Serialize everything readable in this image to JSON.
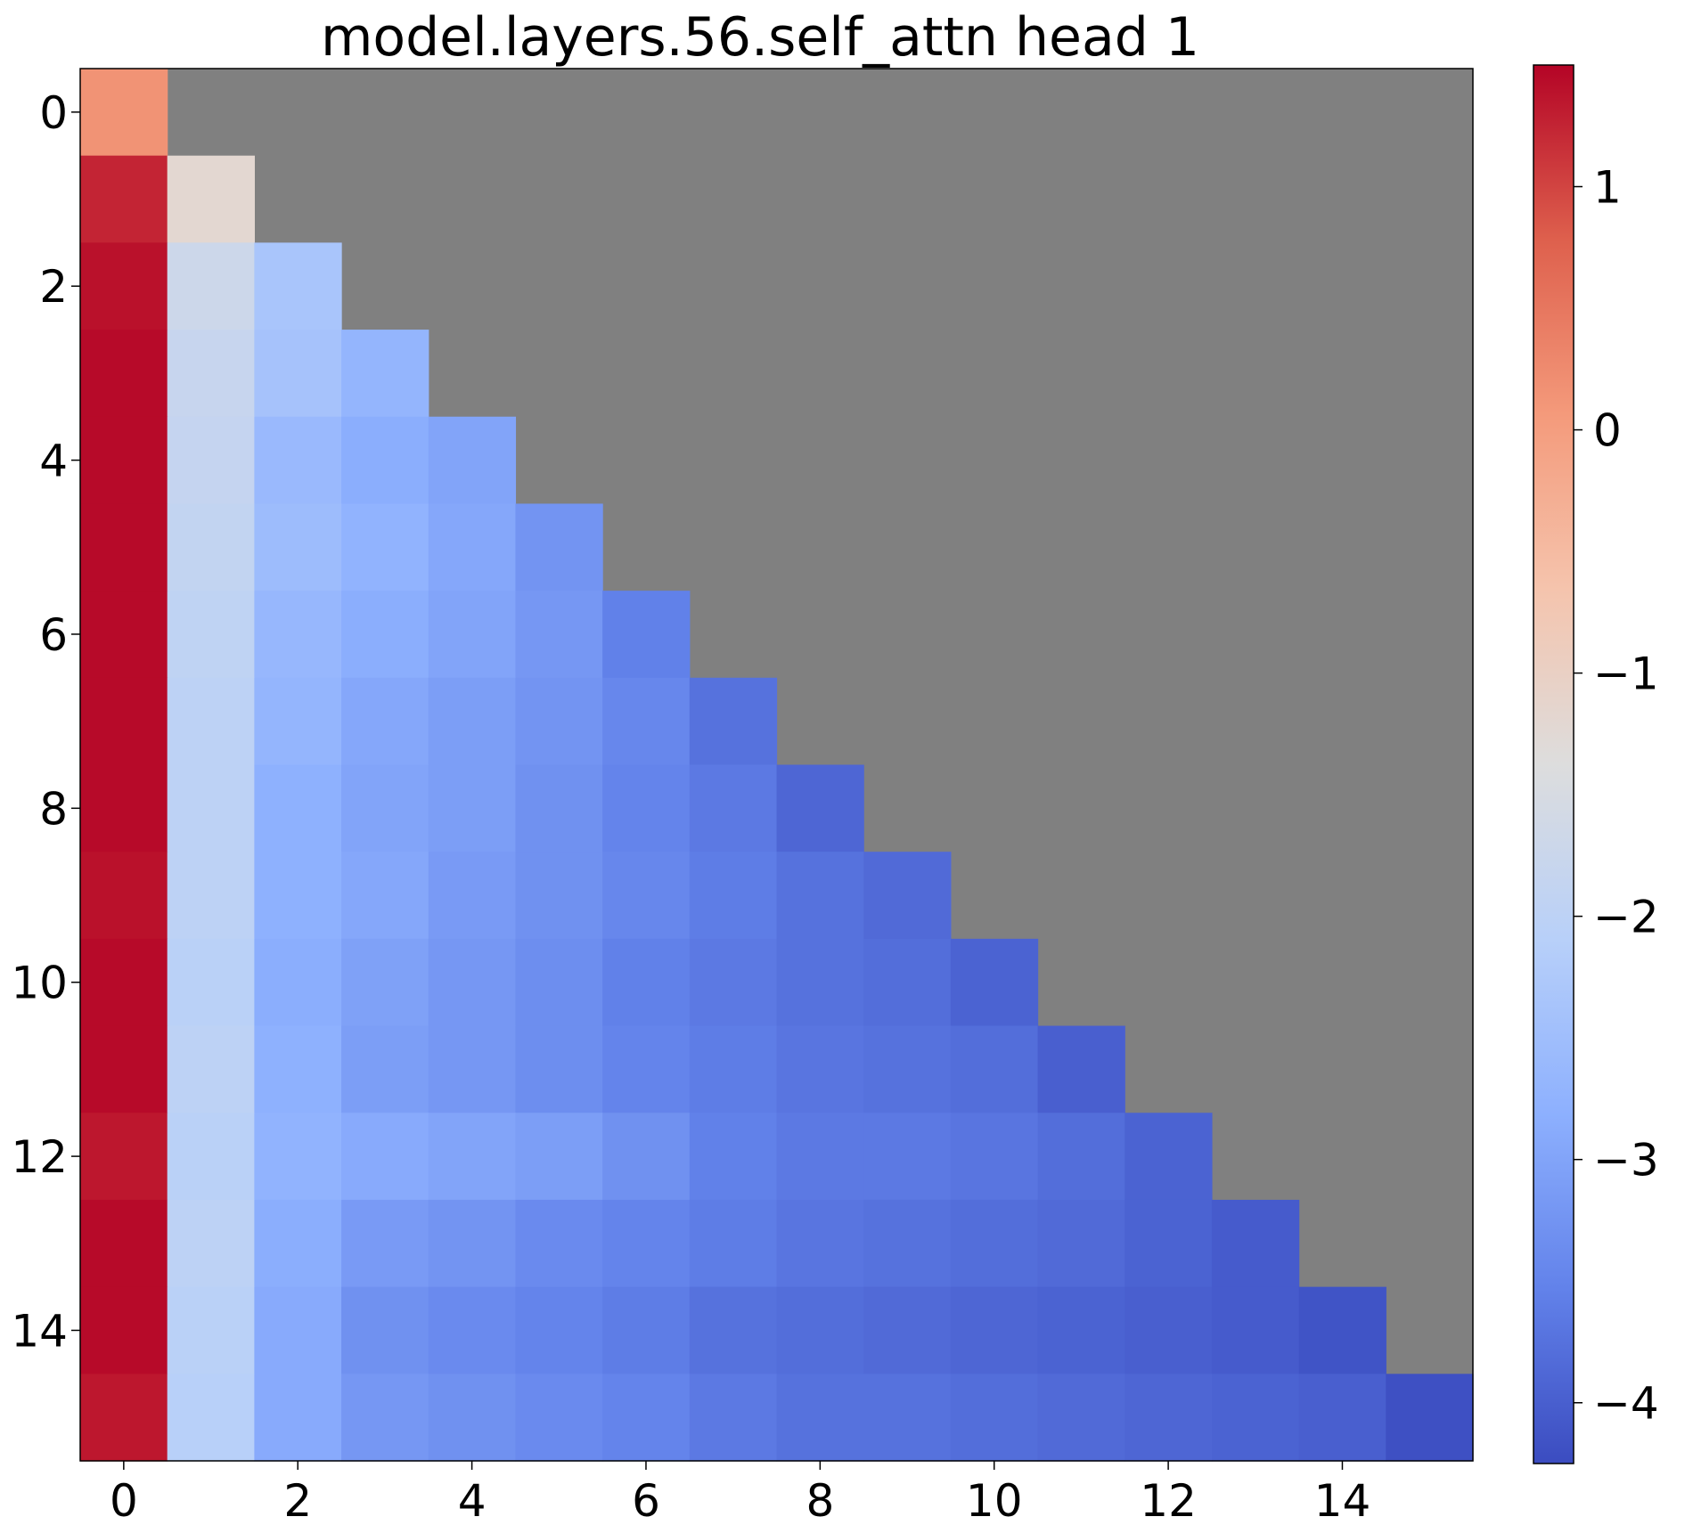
{
  "chart_data": {
    "type": "heatmap",
    "title": "model.layers.56.self_attn head 1",
    "xlabel": "",
    "ylabel": "",
    "colormap": "coolwarm",
    "masked_color": "#808080",
    "vmin": -4.25,
    "vmax": 1.5,
    "xlim": [
      -0.5,
      15.5
    ],
    "ylim": [
      15.5,
      -0.5
    ],
    "x_ticks": [
      0,
      2,
      4,
      6,
      8,
      10,
      12,
      14
    ],
    "y_ticks": [
      0,
      2,
      4,
      6,
      8,
      10,
      12,
      14
    ],
    "colorbar": {
      "ticks": [
        1,
        0,
        -1,
        -2,
        -3,
        -4
      ],
      "tick_labels": [
        "1",
        "0",
        "−1",
        "−2",
        "−3",
        "−4"
      ]
    },
    "masked": "upper triangle (column > row)",
    "values": [
      [
        0.15
      ],
      [
        1.25,
        -1.2
      ],
      [
        1.4,
        -1.7,
        -2.35
      ],
      [
        1.45,
        -1.8,
        -2.4,
        -2.7
      ],
      [
        1.45,
        -1.85,
        -2.6,
        -2.85,
        -3.0
      ],
      [
        1.45,
        -1.9,
        -2.55,
        -2.75,
        -2.95,
        -3.25
      ],
      [
        1.45,
        -1.95,
        -2.65,
        -2.85,
        -3.0,
        -3.2,
        -3.55
      ],
      [
        1.45,
        -2.0,
        -2.7,
        -2.95,
        -3.1,
        -3.25,
        -3.45,
        -3.75
      ],
      [
        1.45,
        -2.0,
        -2.8,
        -3.0,
        -3.1,
        -3.3,
        -3.5,
        -3.65,
        -3.9
      ],
      [
        1.4,
        -2.0,
        -2.8,
        -2.95,
        -3.15,
        -3.3,
        -3.45,
        -3.6,
        -3.75,
        -3.85
      ],
      [
        1.45,
        -2.05,
        -2.85,
        -3.05,
        -3.2,
        -3.35,
        -3.55,
        -3.65,
        -3.75,
        -3.8,
        -3.95
      ],
      [
        1.45,
        -2.0,
        -2.8,
        -3.1,
        -3.2,
        -3.35,
        -3.5,
        -3.6,
        -3.7,
        -3.75,
        -3.8,
        -4.0
      ],
      [
        1.35,
        -2.05,
        -2.75,
        -2.9,
        -3.0,
        -3.1,
        -3.3,
        -3.55,
        -3.65,
        -3.65,
        -3.7,
        -3.8,
        -3.95
      ],
      [
        1.45,
        -2.0,
        -2.85,
        -3.15,
        -3.25,
        -3.4,
        -3.5,
        -3.6,
        -3.7,
        -3.75,
        -3.8,
        -3.85,
        -3.95,
        -4.05
      ],
      [
        1.45,
        -2.05,
        -2.9,
        -3.3,
        -3.4,
        -3.5,
        -3.6,
        -3.75,
        -3.8,
        -3.85,
        -3.9,
        -3.95,
        -4.0,
        -4.05,
        -4.15
      ],
      [
        1.35,
        -2.1,
        -2.9,
        -3.2,
        -3.3,
        -3.4,
        -3.5,
        -3.65,
        -3.75,
        -3.75,
        -3.8,
        -3.85,
        -3.9,
        -3.95,
        -4.0,
        -4.2
      ]
    ]
  }
}
